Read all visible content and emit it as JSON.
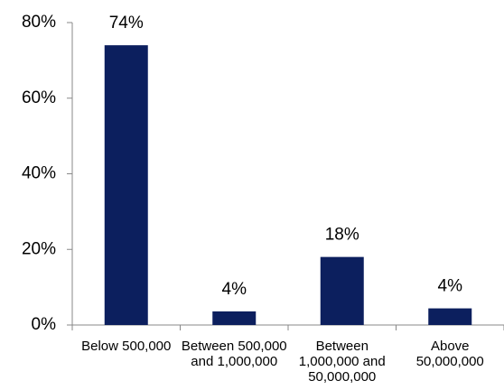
{
  "chart_data": {
    "type": "bar",
    "categories": [
      "Below 500,000",
      "Between 500,000 and 1,000,000",
      "Between 1,000,000 and 50,000,000",
      "Above 50,000,000"
    ],
    "values": [
      74,
      3.6,
      18,
      4.4
    ],
    "value_labels": [
      "74%",
      "4%",
      "18%",
      "4%"
    ],
    "color": "#0c1f5e",
    "ylim": [
      0,
      80
    ],
    "yticks": [
      {
        "value": 0,
        "label": "0%"
      },
      {
        "value": 20,
        "label": "20%"
      },
      {
        "value": 40,
        "label": "40%"
      },
      {
        "value": 60,
        "label": "60%"
      },
      {
        "value": 80,
        "label": "80%"
      }
    ],
    "grid": false
  }
}
